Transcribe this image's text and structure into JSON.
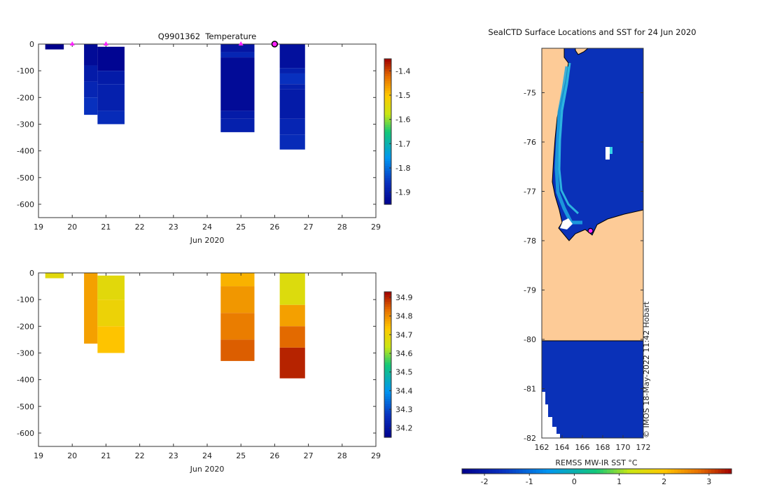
{
  "chart_data": [
    {
      "type": "heatmap",
      "title": "Q9901362  Temperature",
      "xlabel": "Jun 2020",
      "ylabel": "",
      "x_ticks": [
        "19",
        "20",
        "21",
        "22",
        "23",
        "24",
        "25",
        "26",
        "27",
        "28",
        "29"
      ],
      "y_ticks": [
        "0",
        "-100",
        "-200",
        "-300",
        "-400",
        "-500",
        "-600"
      ],
      "xlim": [
        19,
        29
      ],
      "ylim": [
        -650,
        0
      ],
      "colorbar": {
        "ticks": [
          "-1.4",
          "-1.5",
          "-1.6",
          "-1.7",
          "-1.8",
          "-1.9"
        ],
        "range": [
          -1.95,
          -1.35
        ]
      },
      "surface_markers": [
        20,
        21,
        25
      ],
      "latest_marker": 26,
      "profiles": [
        {
          "x0": 19.2,
          "x1": 19.75,
          "bands": [
            [
              0,
              -20,
              -1.95
            ]
          ]
        },
        {
          "x0": 20.35,
          "x1": 20.75,
          "bands": [
            [
              0,
              -80,
              -1.93
            ],
            [
              -80,
              -140,
              -1.9
            ],
            [
              -140,
              -200,
              -1.88
            ],
            [
              -200,
              -265,
              -1.86
            ]
          ]
        },
        {
          "x0": 20.75,
          "x1": 21.55,
          "bands": [
            [
              -10,
              -100,
              -1.94
            ],
            [
              -100,
              -150,
              -1.9
            ],
            [
              -150,
              -250,
              -1.89
            ],
            [
              -250,
              -300,
              -1.87
            ]
          ]
        },
        {
          "x0": 24.4,
          "x1": 25.4,
          "bands": [
            [
              0,
              -30,
              -1.91
            ],
            [
              -30,
              -50,
              -1.88
            ],
            [
              -50,
              -250,
              -1.93
            ],
            [
              -250,
              -280,
              -1.9
            ],
            [
              -280,
              -330,
              -1.89
            ]
          ]
        },
        {
          "x0": 26.15,
          "x1": 26.9,
          "bands": [
            [
              0,
              -90,
              -1.92
            ],
            [
              -90,
              -110,
              -1.89
            ],
            [
              -110,
              -150,
              -1.86
            ],
            [
              -150,
              -170,
              -1.89
            ],
            [
              -170,
              -280,
              -1.9
            ],
            [
              -280,
              -340,
              -1.88
            ],
            [
              -340,
              -395,
              -1.87
            ]
          ]
        }
      ]
    },
    {
      "type": "heatmap",
      "title": "",
      "xlabel": "Jun 2020",
      "ylabel": "",
      "x_ticks": [
        "19",
        "20",
        "21",
        "22",
        "23",
        "24",
        "25",
        "26",
        "27",
        "28",
        "29"
      ],
      "y_ticks": [
        "0",
        "-100",
        "-200",
        "-300",
        "-400",
        "-500",
        "-600"
      ],
      "xlim": [
        19,
        29
      ],
      "ylim": [
        -650,
        0
      ],
      "colorbar": {
        "ticks": [
          "34.9",
          "34.8",
          "34.7",
          "34.6",
          "34.5",
          "34.4",
          "34.3",
          "34.2"
        ],
        "range": [
          34.15,
          34.93
        ]
      },
      "profiles": [
        {
          "x0": 19.2,
          "x1": 19.75,
          "bands": [
            [
              0,
              -20,
              34.68
            ]
          ]
        },
        {
          "x0": 20.35,
          "x1": 20.75,
          "bands": [
            [
              0,
              -265,
              34.78
            ]
          ]
        },
        {
          "x0": 20.75,
          "x1": 21.55,
          "bands": [
            [
              -10,
              -100,
              34.68
            ],
            [
              -100,
              -200,
              34.7
            ],
            [
              -200,
              -300,
              34.74
            ]
          ]
        },
        {
          "x0": 24.4,
          "x1": 25.4,
          "bands": [
            [
              0,
              -50,
              34.76
            ],
            [
              -50,
              -150,
              34.79
            ],
            [
              -150,
              -250,
              34.82
            ],
            [
              -250,
              -330,
              34.85
            ]
          ]
        },
        {
          "x0": 26.15,
          "x1": 26.9,
          "bands": [
            [
              0,
              -120,
              34.67
            ],
            [
              -120,
              -200,
              34.78
            ],
            [
              -200,
              -280,
              34.84
            ],
            [
              -280,
              -395,
              34.9
            ]
          ]
        }
      ]
    },
    {
      "type": "heatmap",
      "title": "SealCTD Surface Locations and SST for 24 Jun 2020",
      "xlabel": "REMSS MW-IR SST °C",
      "x_ticks": [
        "162",
        "164",
        "166",
        "168",
        "170",
        "172"
      ],
      "y_ticks": [
        "-75",
        "-76",
        "-77",
        "-78",
        "-79",
        "-80",
        "-81",
        "-82"
      ],
      "xlim": [
        162,
        172
      ],
      "ylim": [
        -82,
        -74.1
      ],
      "colorbar": {
        "ticks": [
          "-2",
          "-1",
          "0",
          "1",
          "2",
          "3"
        ],
        "range": [
          -2.5,
          3.5
        ]
      },
      "land_color": "#fdcb97",
      "ocean_color": "#0a31b8",
      "seal_location": {
        "lon": 166.8,
        "lat": -77.8
      },
      "credit": "© IMOS 18-May-2022 11:42 Hobart"
    }
  ]
}
